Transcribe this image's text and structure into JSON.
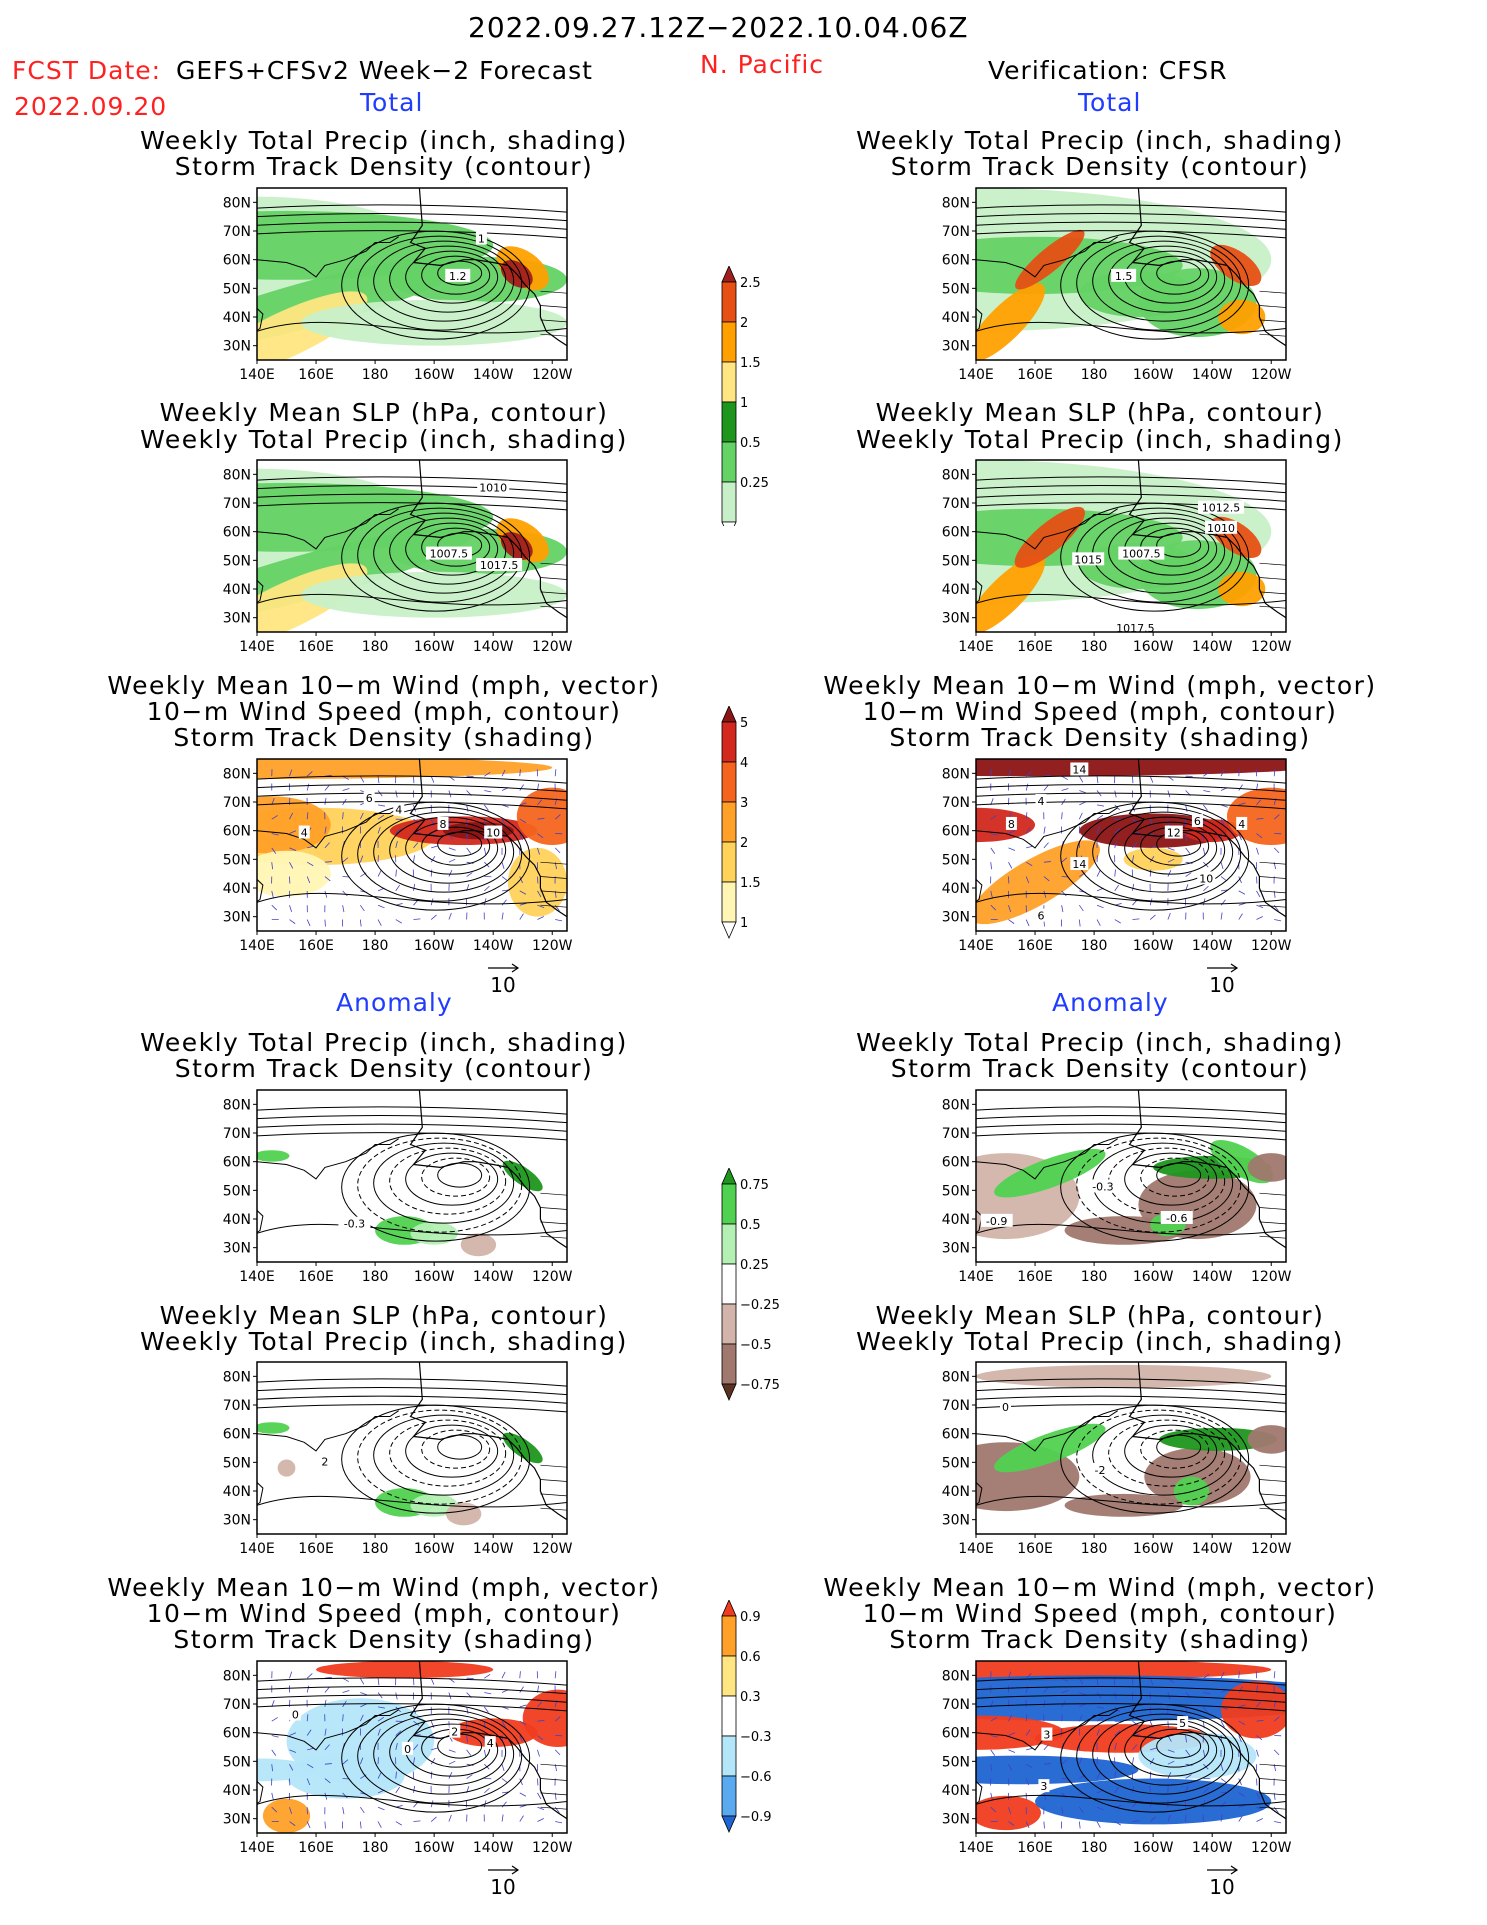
{
  "header": {
    "date_range": "2022.09.27.12Z−2022.10.04.06Z",
    "fcst_label": "FCST Date:",
    "fcst_model": "GEFS+CFSv2 Week−2 Forecast",
    "fcst_date": "2022.09.20",
    "region": "N. Pacific",
    "verification": "Verification: CFSR"
  },
  "sections": {
    "total": "Total",
    "anomaly": "Anomaly"
  },
  "titles": {
    "precip_storm": [
      "Weekly Total Precip (inch, shading)",
      "Storm Track Density (contour)"
    ],
    "slp_precip": [
      "Weekly Mean SLP (hPa, contour)",
      "Weekly Total Precip (inch, shading)"
    ],
    "wind_storm": [
      "Weekly Mean 10−m Wind (mph, vector)",
      "10−m Wind Speed (mph, contour)",
      "Storm Track Density (shading)"
    ]
  },
  "axes": {
    "lat_labels": [
      "80N",
      "70N",
      "60N",
      "50N",
      "40N",
      "30N"
    ],
    "lon_labels": [
      "140E",
      "160E",
      "180",
      "160W",
      "140W",
      "120W"
    ]
  },
  "contour_labels": {
    "fcst_precip_storm": [
      "1",
      "1.2"
    ],
    "obs_precip_storm": [
      "1.5"
    ],
    "fcst_slp": [
      "1010",
      "1007.5",
      "1017.5"
    ],
    "obs_slp": [
      "1012.5",
      "1010",
      "1015",
      "1007.5",
      "1017.5"
    ],
    "fcst_wind": [
      "6",
      "4",
      "8",
      "10",
      "4"
    ],
    "obs_wind": [
      "14",
      "4",
      "8",
      "6",
      "12",
      "4",
      "14",
      "10",
      "6"
    ],
    "fcst_anom_precip": [
      "-0.3"
    ],
    "obs_anom_precip": [
      "-0.3",
      "-0.9",
      "-0.6"
    ],
    "fcst_anom_slp": [
      "2"
    ],
    "obs_anom_slp": [
      "0",
      "-2"
    ],
    "fcst_anom_wind": [
      "0",
      "2",
      "4",
      "0"
    ],
    "obs_anom_wind": [
      "3",
      "5",
      "3"
    ]
  },
  "colorbars": {
    "precip_total": [
      "2.5",
      "2",
      "1.5",
      "1",
      "0.5",
      "0.25"
    ],
    "storm_total": [
      "5",
      "4",
      "3",
      "2",
      "1.5",
      "1"
    ],
    "precip_anom": [
      "0.75",
      "0.5",
      "0.25",
      "−0.25",
      "−0.5",
      "−0.75"
    ],
    "storm_anom": [
      "0.9",
      "0.6",
      "0.3",
      "−0.3",
      "−0.6",
      "−0.9"
    ]
  },
  "vector_reference": "10",
  "colors": {
    "precip_total": [
      "#ffffff",
      "#c8f0c8",
      "#64d264",
      "#1e961e",
      "#ffe682",
      "#ffa000",
      "#e65014",
      "#a01e1e"
    ],
    "storm_total": [
      "#ffffff",
      "#fff5b4",
      "#ffd25a",
      "#ffa028",
      "#f5641e",
      "#d2281e",
      "#8c1414"
    ],
    "precip_anom": [
      "#5a3222",
      "#a0786e",
      "#d2b4aa",
      "#ffffff",
      "#b4f0b4",
      "#50d250",
      "#1e961e"
    ],
    "storm_anom": [
      "#1e64d2",
      "#5aaaf0",
      "#b4e6fa",
      "#ffffff",
      "#ffe682",
      "#ffa028",
      "#f03c1e"
    ],
    "header_red": "#ff2020",
    "header_blue": "#1f3cff"
  }
}
